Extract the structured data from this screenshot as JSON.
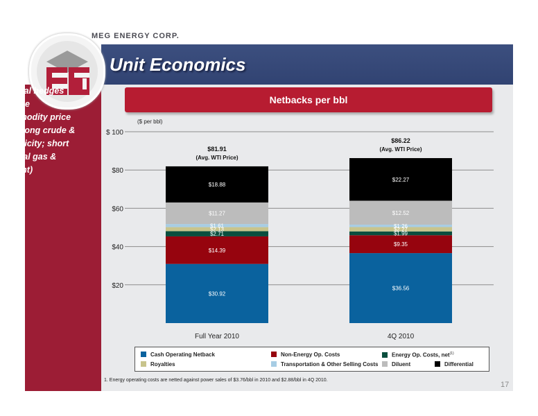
{
  "header": {
    "company": "MEG ENERGY CORP.",
    "title": "Unit Economics"
  },
  "logo": {
    "letters": "MEG"
  },
  "sidebar": {
    "lines": [
      "Natural hedges",
      "reduce",
      "commodity price",
      "risk (long crude &",
      "electricity; short",
      "natural gas &",
      "diluent)"
    ]
  },
  "banner": {
    "label": "Netbacks per bbl"
  },
  "footnote": "1. Energy operating costs are netted against power sales of $3.76/bbl in 2010 and $2.88/bbl in 4Q 2010.",
  "page_number": "17",
  "colors": {
    "Cash Operating Netback": "#0a629e",
    "Non-Energy Op. Costs": "#96040e",
    "Energy Op. Costs, net": "#0a4e3e",
    "Royalties": "#c8c48c",
    "Transportation & Other Selling Costs": "#a7cde4",
    "Diluent": "#bcbcbc",
    "Differential": "#000000"
  },
  "chart_data": {
    "type": "bar",
    "stacked": true,
    "unit_label": "($ per bbl)",
    "categories": [
      "Full Year 2010",
      "4Q 2010"
    ],
    "ylim": [
      0,
      100
    ],
    "yticks": [
      "$20",
      "$40",
      "$60",
      "$80",
      "$ 100"
    ],
    "ytick_values": [
      20,
      40,
      60,
      80,
      100
    ],
    "grid": true,
    "totals": [
      {
        "value": "$81.91",
        "note": "(Avg. WTI Price)"
      },
      {
        "value": "$86.22",
        "note": "(Avg. WTI Price)"
      }
    ],
    "series": [
      {
        "name": "Cash Operating Netback",
        "values": [
          30.92,
          36.56
        ],
        "labels": [
          "$30.92",
          "$36.56"
        ]
      },
      {
        "name": "Non-Energy Op. Costs",
        "values": [
          14.39,
          9.35
        ],
        "labels": [
          "$14.39",
          "$9.35"
        ]
      },
      {
        "name": "Energy Op. Costs, net",
        "values": [
          2.71,
          1.99
        ],
        "labels": [
          "$2.71",
          "$1.99"
        ]
      },
      {
        "name": "Royalties",
        "values": [
          2.13,
          2.27
        ],
        "labels": [
          "$2.13",
          "$2.27"
        ]
      },
      {
        "name": "Transportation & Other Selling Costs",
        "values": [
          1.61,
          1.26
        ],
        "labels": [
          "$1.61",
          "$1.26"
        ]
      },
      {
        "name": "Diluent",
        "values": [
          11.27,
          12.52
        ],
        "labels": [
          "$11.27",
          "$12.52"
        ]
      },
      {
        "name": "Differential",
        "values": [
          18.88,
          22.27
        ],
        "labels": [
          "$18.88",
          "$22.27"
        ]
      }
    ],
    "legend": [
      {
        "name": "Cash Operating Netback",
        "sup": ""
      },
      {
        "name": "Non-Energy Op. Costs",
        "sup": ""
      },
      {
        "name": "Energy Op. Costs, net",
        "sup": "(1)"
      },
      {
        "name": "Royalties",
        "sup": ""
      },
      {
        "name": "Transportation & Other Selling Costs",
        "sup": ""
      },
      {
        "name": "Diluent",
        "sup": ""
      },
      {
        "name": "Differential",
        "sup": ""
      }
    ],
    "legend_placement": "bottom"
  }
}
